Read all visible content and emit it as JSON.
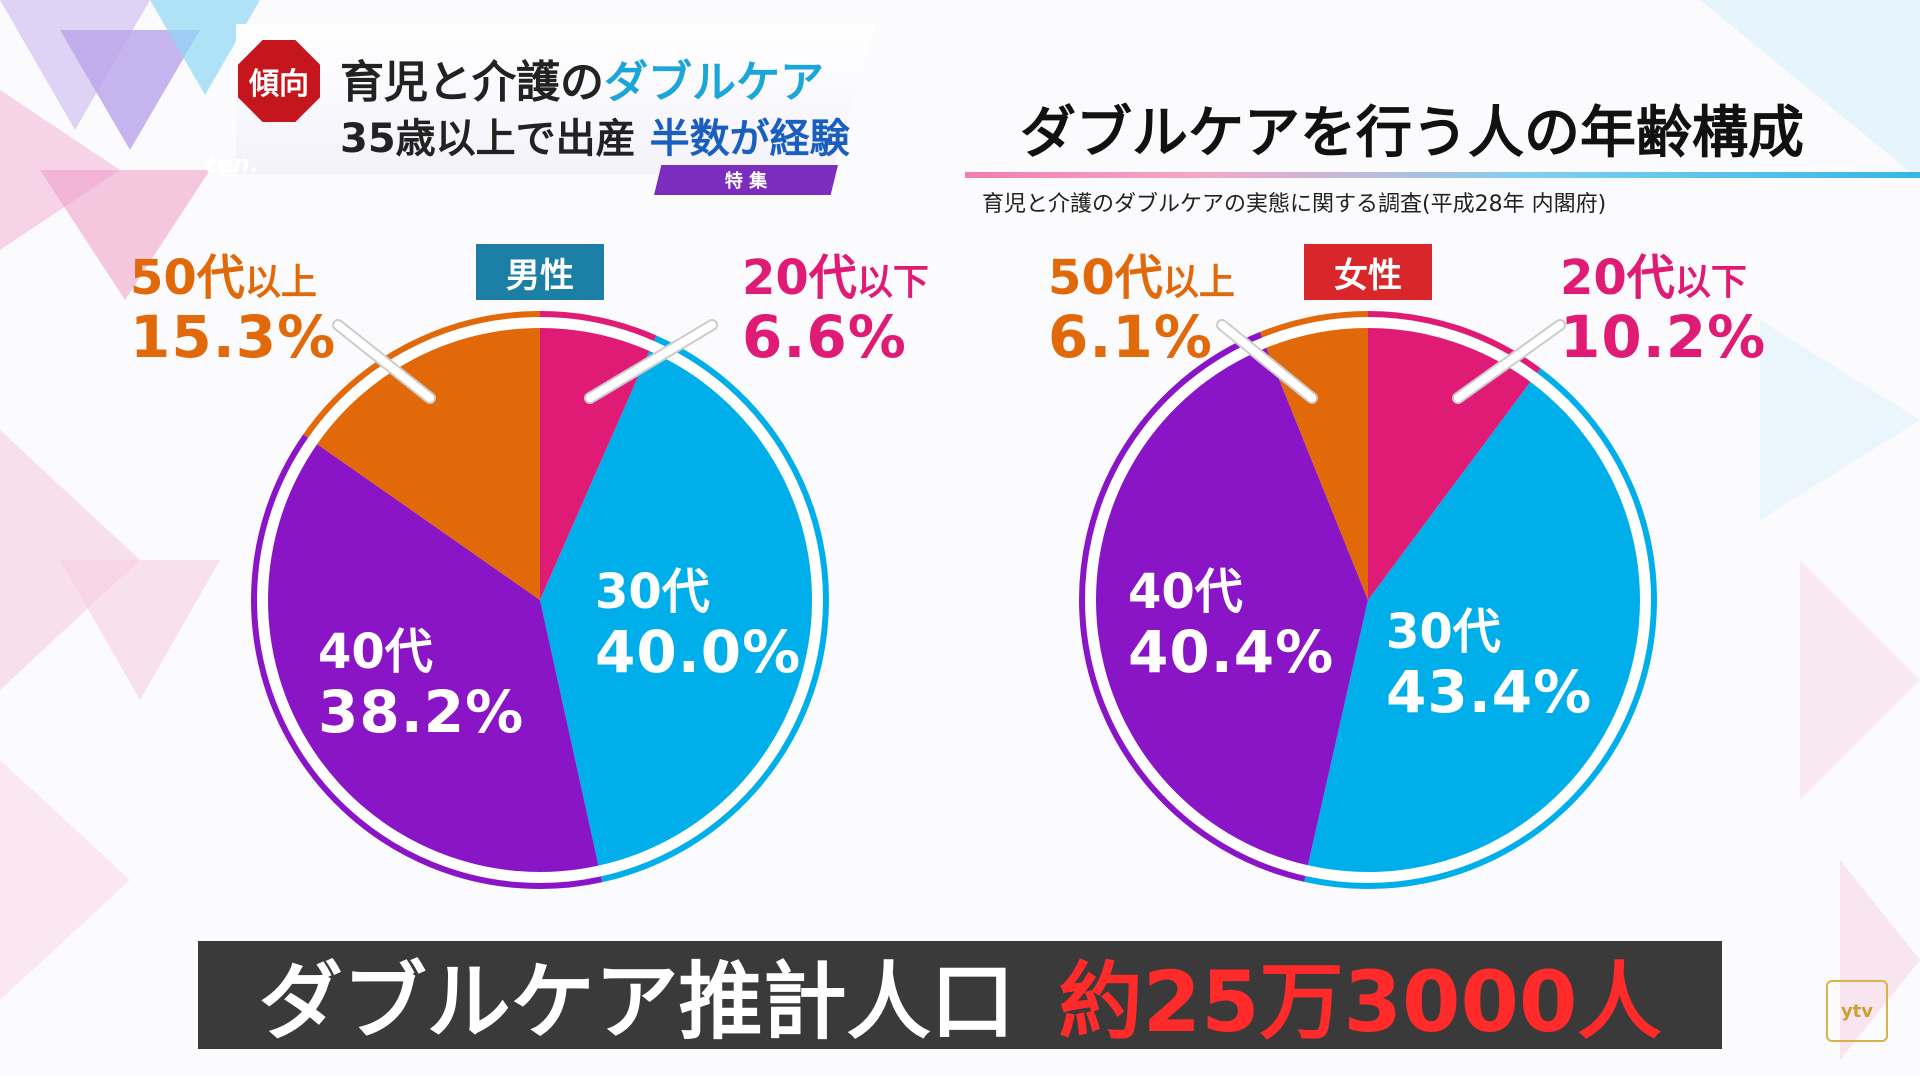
{
  "banner": {
    "tag": "傾向",
    "line1_prefix": "育児と介護の",
    "line1_accent": "ダブルケア",
    "line2_prefix": "35歳以上で出産 ",
    "line2_accent": "半数が経験",
    "special": "特 集",
    "logo": "ten."
  },
  "chart_heading": {
    "title": "ダブルケアを行う人の年齢構成",
    "source": "育児と介護のダブルケアの実態に関する調査(平成28年 内閣府)"
  },
  "colors": {
    "20s_under": "#df1b76",
    "30s": "#00aeea",
    "40s": "#8a15c6",
    "50s_over": "#e2690a"
  },
  "chart_data": [
    {
      "type": "pie",
      "title": "男性",
      "categories": [
        "20代以下",
        "30代",
        "40代",
        "50代以上"
      ],
      "values": [
        6.6,
        40.0,
        38.2,
        15.3
      ],
      "value_labels": [
        "6.6%",
        "40.0%",
        "38.2%",
        "15.3%"
      ],
      "inner_labels": [
        {
          "cat": "30代",
          "pct": "40.0%"
        },
        {
          "cat": "40代",
          "pct": "38.2%"
        }
      ],
      "callouts": {
        "left": {
          "cat_main": "50代",
          "cat_sub": "以上",
          "pct": "15.3%"
        },
        "right": {
          "cat_main": "20代",
          "cat_sub": "以下",
          "pct": "6.6%"
        }
      }
    },
    {
      "type": "pie",
      "title": "女性",
      "categories": [
        "20代以下",
        "30代",
        "40代",
        "50代以上"
      ],
      "values": [
        10.2,
        43.4,
        40.4,
        6.1
      ],
      "value_labels": [
        "10.2%",
        "43.4%",
        "40.4%",
        "6.1%"
      ],
      "inner_labels": [
        {
          "cat": "30代",
          "pct": "43.4%"
        },
        {
          "cat": "40代",
          "pct": "40.4%"
        }
      ],
      "callouts": {
        "left": {
          "cat_main": "50代",
          "cat_sub": "以上",
          "pct": "6.1%"
        },
        "right": {
          "cat_main": "20代",
          "cat_sub": "以下",
          "pct": "10.2%"
        }
      }
    }
  ],
  "caption": {
    "main": "ダブルケア推計人口",
    "value": "約25万3000人"
  },
  "corner_logo": "ytv"
}
